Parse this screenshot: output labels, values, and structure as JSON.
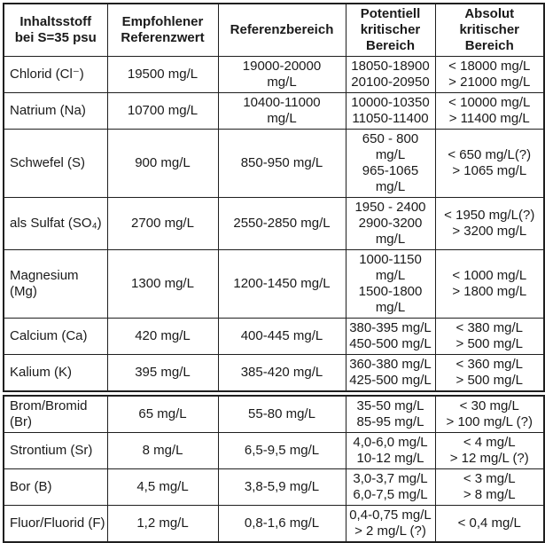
{
  "table": {
    "headers": [
      "Inhaltsstoff\nbei S=35 psu",
      "Empfohlener\nReferenzwert",
      "Referenzbereich",
      "Potentiell\nkritischer\nBereich",
      "Absolut\nkritischer\nBereich"
    ],
    "rows": [
      {
        "name": "Chlorid (Cl⁻)",
        "recommended": "19500 mg/L",
        "range": "19000-20000\nmg/L",
        "potential": "18050-18900\n20100-20950",
        "absolute": "< 18000 mg/L\n> 21000 mg/L"
      },
      {
        "name": "Natrium (Na)",
        "recommended": "10700 mg/L",
        "range": "10400-11000\nmg/L",
        "potential": "10000-10350\n11050-11400",
        "absolute": "< 10000 mg/L\n> 11400 mg/L"
      },
      {
        "name": "Schwefel (S)",
        "recommended": "900 mg/L",
        "range": "850-950 mg/L",
        "potential": "650 - 800 mg/L\n965-1065 mg/L",
        "absolute": "< 650 mg/L(?)\n> 1065 mg/L"
      },
      {
        "name": "als Sulfat (SO₄)",
        "recommended": "2700 mg/L",
        "range": "2550-2850 mg/L",
        "potential": "1950 - 2400\n2900-3200\nmg/L",
        "absolute": "< 1950 mg/L(?)\n> 3200 mg/L"
      },
      {
        "name": "Magnesium (Mg)",
        "recommended": "1300 mg/L",
        "range": "1200-1450 mg/L",
        "potential": "1000-1150\nmg/L\n1500-1800\nmg/L",
        "absolute": "< 1000 mg/L\n> 1800 mg/L"
      },
      {
        "name": "Calcium (Ca)",
        "recommended": "420 mg/L",
        "range": "400-445 mg/L",
        "potential": "380-395 mg/L\n450-500 mg/L",
        "absolute": "< 380 mg/L\n> 500 mg/L"
      },
      {
        "name": "Kalium (K)",
        "recommended": "395 mg/L",
        "range": "385-420 mg/L",
        "potential": "360-380 mg/L\n425-500 mg/L",
        "absolute": "< 360 mg/L\n> 500 mg/L"
      },
      {
        "name": "Brom/Bromid\n(Br)",
        "recommended": "65 mg/L",
        "range": "55-80 mg/L",
        "potential": "35-50 mg/L\n85-95 mg/L",
        "absolute": "< 30 mg/L\n> 100 mg/L (?)"
      },
      {
        "name": "Strontium (Sr)",
        "recommended": "8 mg/L",
        "range": "6,5-9,5 mg/L",
        "potential": "4,0-6,0 mg/L\n10-12 mg/L",
        "absolute": "< 4 mg/L\n> 12 mg/L (?)"
      },
      {
        "name": "Bor (B)",
        "recommended": "4,5 mg/L",
        "range": "3,8-5,9 mg/L",
        "potential": "3,0-3,7 mg/L\n6,0-7,5 mg/L",
        "absolute": "< 3 mg/L\n> 8 mg/L"
      },
      {
        "name": "Fluor/Fluorid (F)",
        "recommended": "1,2 mg/L",
        "range": "0,8-1,6 mg/L",
        "potential": "0,4-0,75 mg/L\n> 2 mg/L (?)",
        "absolute": "< 0,4 mg/L"
      }
    ]
  }
}
